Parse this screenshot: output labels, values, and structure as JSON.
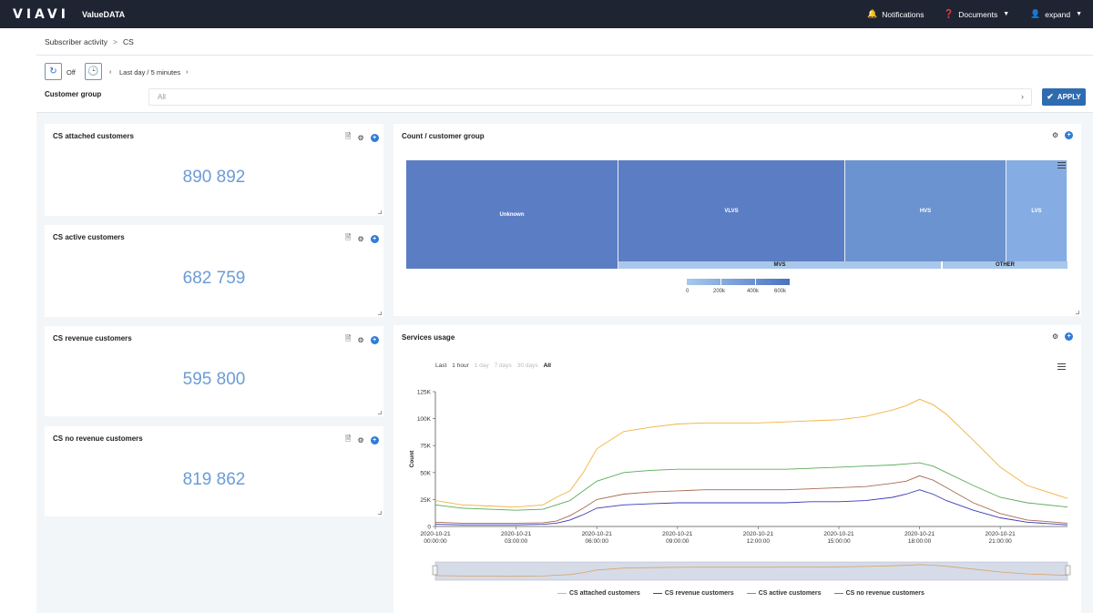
{
  "header": {
    "logo": "VIAVI",
    "app_name": "ValueDATA",
    "notifications_label": "Notifications",
    "documents_label": "Documents",
    "user_label": "expand"
  },
  "breadcrumb": {
    "parent": "Subscriber activity",
    "separator": ">",
    "current": "CS"
  },
  "filters": {
    "refresh_state": "Off",
    "time_range": "Last day / 5 minutes",
    "customer_group_label": "Customer group",
    "customer_group_value": "All",
    "apply_label": "APPLY"
  },
  "kpis": [
    {
      "title": "CS attached customers",
      "value": "890 892"
    },
    {
      "title": "CS active customers",
      "value": "682 759"
    },
    {
      "title": "CS revenue customers",
      "value": "595 800"
    },
    {
      "title": "CS no revenue customers",
      "value": "819 862"
    }
  ],
  "treemap": {
    "title": "Count / customer group",
    "cells": [
      "Unknown",
      "VLVS",
      "HVS",
      "LVS",
      "MVS",
      "OTHER"
    ],
    "legend_ticks": [
      "0",
      "200k",
      "400k",
      "600k"
    ]
  },
  "services": {
    "title": "Services usage",
    "range_label": "Last",
    "range_options": [
      "1 hour",
      "1 day",
      "7 days",
      "30 days",
      "All"
    ],
    "selected_range": "All",
    "ylabel": "Count"
  },
  "colors": {
    "topbar": "#1e2432",
    "accent": "#2f6bb0",
    "kpi_value": "#6b9cd6",
    "attached": "#f0b341",
    "revenue": "#3a3ab8",
    "active": "#5aab5a",
    "no_revenue": "#a86b4f"
  },
  "chart_data": {
    "type": "line",
    "title": "",
    "xlabel": "",
    "ylabel": "Count",
    "x_tick_labels": [
      [
        "2020-10-21",
        "00:00:00"
      ],
      [
        "2020-10-21",
        "03:00:00"
      ],
      [
        "2020-10-21",
        "06:00:00"
      ],
      [
        "2020-10-21",
        "09:00:00"
      ],
      [
        "2020-10-21",
        "12:00:00"
      ],
      [
        "2020-10-21",
        "15:00:00"
      ],
      [
        "2020-10-21",
        "18:00:00"
      ],
      [
        "2020-10-21",
        "21:00:00"
      ]
    ],
    "y_tick_labels": [
      "0",
      "25K",
      "50K",
      "75K",
      "100K",
      "125K"
    ],
    "ylim": [
      0,
      125000
    ],
    "xlim_hours": [
      0,
      23.5
    ],
    "x_hours": [
      0,
      1,
      2,
      3,
      4,
      4.5,
      5,
      5.5,
      6,
      7,
      8,
      9,
      10,
      11,
      12,
      13,
      14,
      15,
      16,
      17,
      17.5,
      18,
      18.5,
      19,
      20,
      21,
      22,
      23.5
    ],
    "series": [
      {
        "name": "CS attached customers",
        "color": "#f0b341",
        "values": [
          24000,
          20000,
          19000,
          18000,
          20000,
          27000,
          33000,
          50000,
          72000,
          88000,
          92000,
          95000,
          96000,
          96000,
          96000,
          97000,
          98000,
          99000,
          102000,
          108000,
          112000,
          118000,
          113000,
          104000,
          80000,
          55000,
          38000,
          26000
        ]
      },
      {
        "name": "CS revenue customers",
        "color": "#3a3ab8",
        "values": [
          2000,
          1500,
          1500,
          1500,
          2000,
          3000,
          6000,
          11000,
          17000,
          20000,
          21000,
          22000,
          22000,
          22000,
          22000,
          22000,
          23000,
          23000,
          24000,
          27000,
          30000,
          34000,
          30000,
          24000,
          15000,
          8000,
          4000,
          1500
        ]
      },
      {
        "name": "CS active customers",
        "color": "#5aab5a",
        "values": [
          20000,
          17000,
          16000,
          15000,
          16000,
          20000,
          24000,
          33000,
          42000,
          50000,
          52000,
          53000,
          53000,
          53000,
          53000,
          53000,
          54000,
          55000,
          56000,
          57000,
          58000,
          59000,
          56000,
          50000,
          38000,
          27000,
          22000,
          18000
        ]
      },
      {
        "name": "CS no revenue customers",
        "color": "#a86b4f",
        "values": [
          4000,
          3000,
          3000,
          3000,
          3500,
          5000,
          10000,
          17000,
          25000,
          30000,
          32000,
          33000,
          34000,
          34000,
          34000,
          34000,
          35000,
          36000,
          37000,
          40000,
          42000,
          47000,
          43000,
          36000,
          22000,
          12000,
          6000,
          3000
        ]
      }
    ]
  }
}
